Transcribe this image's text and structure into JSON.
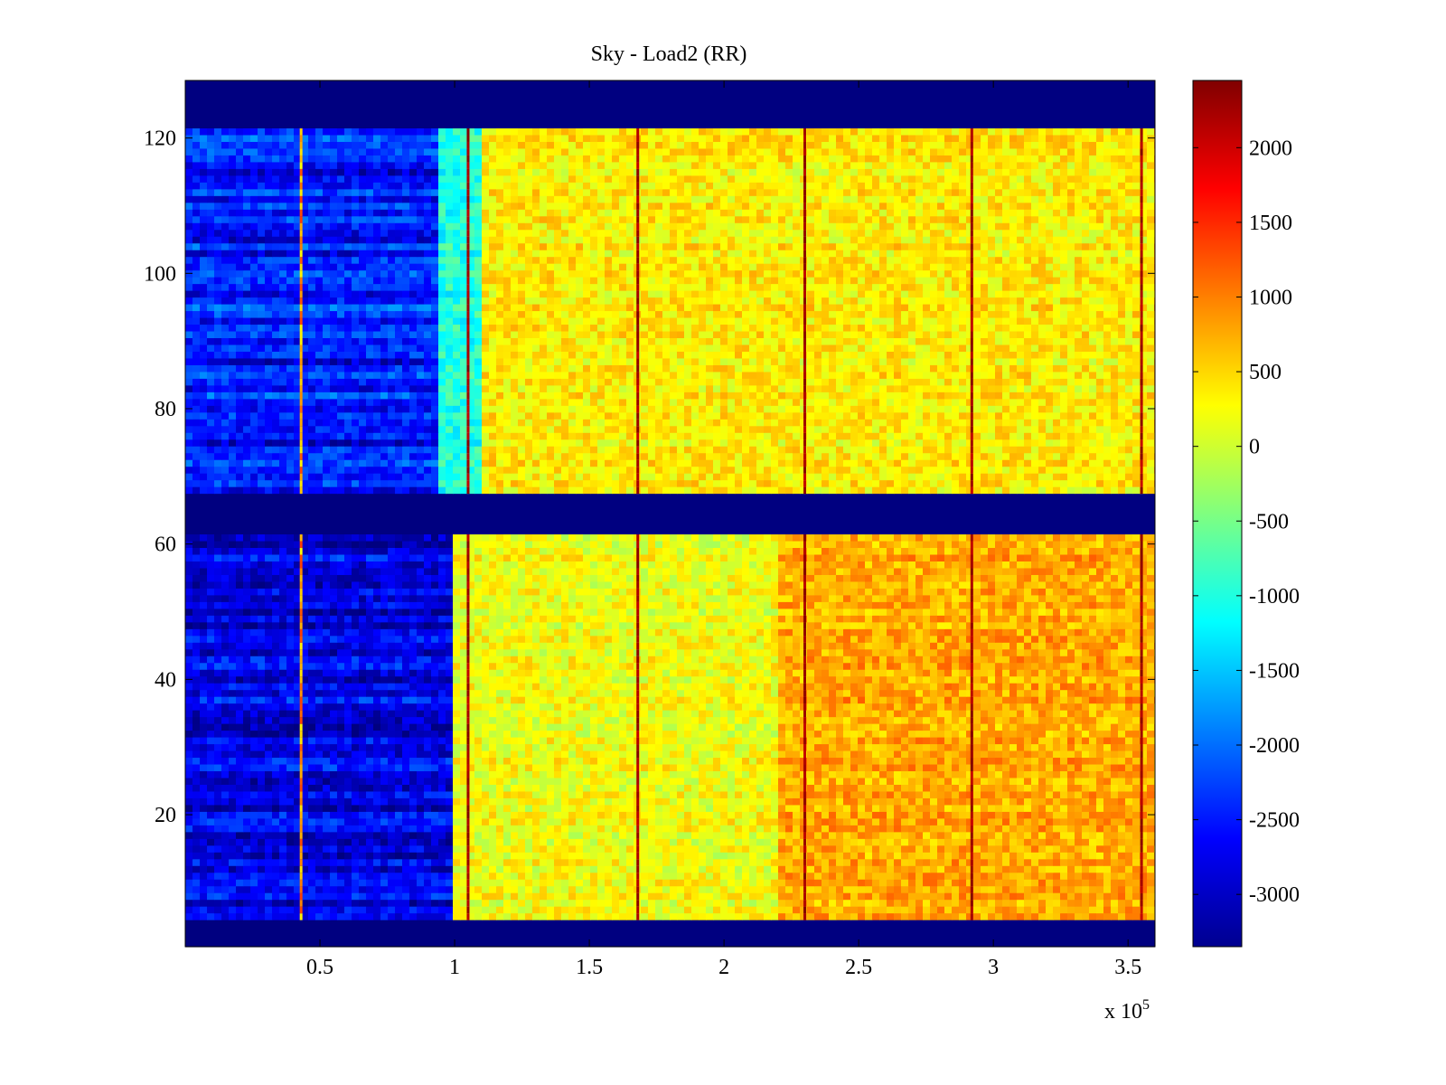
{
  "chart_data": {
    "type": "heatmap",
    "title": "Sky - Load2 (RR)",
    "xlabel": "",
    "ylabel": "",
    "x_multiplier_label": "x 10",
    "x_multiplier_exponent": "5",
    "xlim": [
      0,
      3.6
    ],
    "ylim": [
      1,
      128
    ],
    "x_ticks": [
      0.5,
      1,
      1.5,
      2,
      2.5,
      3,
      3.5
    ],
    "x_tick_labels": [
      "0.5",
      "1",
      "1.5",
      "2",
      "2.5",
      "3",
      "3.5"
    ],
    "y_ticks": [
      20,
      40,
      60,
      80,
      100,
      120
    ],
    "y_tick_labels": [
      "20",
      "40",
      "60",
      "80",
      "100",
      "120"
    ],
    "colormap": "jet",
    "clim": [
      -3350,
      2450
    ],
    "colorbar_ticks": [
      -3000,
      -2500,
      -2000,
      -1500,
      -1000,
      -500,
      0,
      500,
      1000,
      1500,
      2000
    ],
    "colorbar_tick_labels": [
      "-3000",
      "-2500",
      "-2000",
      "-1500",
      "-1000",
      "-500",
      "0",
      "500",
      "1000",
      "1500",
      "2000"
    ],
    "masked_row_bands": [
      [
        1,
        4
      ],
      [
        62,
        67
      ],
      [
        122,
        128
      ]
    ],
    "bright_columns_x": [
      0.43,
      1.05,
      1.68,
      2.3,
      2.92,
      3.55
    ],
    "regions": [
      {
        "rows": [
          68,
          121
        ],
        "x_range": [
          0.0,
          0.95
        ],
        "approx_value": -2500
      },
      {
        "rows": [
          68,
          121
        ],
        "x_range": [
          0.95,
          1.1
        ],
        "approx_value": -1000
      },
      {
        "rows": [
          68,
          121
        ],
        "x_range": [
          1.1,
          3.6
        ],
        "approx_value": 350
      },
      {
        "rows": [
          5,
          61
        ],
        "x_range": [
          0.0,
          1.0
        ],
        "approx_value": -2800
      },
      {
        "rows": [
          5,
          61
        ],
        "x_range": [
          1.0,
          2.2
        ],
        "approx_value": 200
      },
      {
        "rows": [
          5,
          61
        ],
        "x_range": [
          2.2,
          3.6
        ],
        "approx_value": 750
      }
    ]
  }
}
